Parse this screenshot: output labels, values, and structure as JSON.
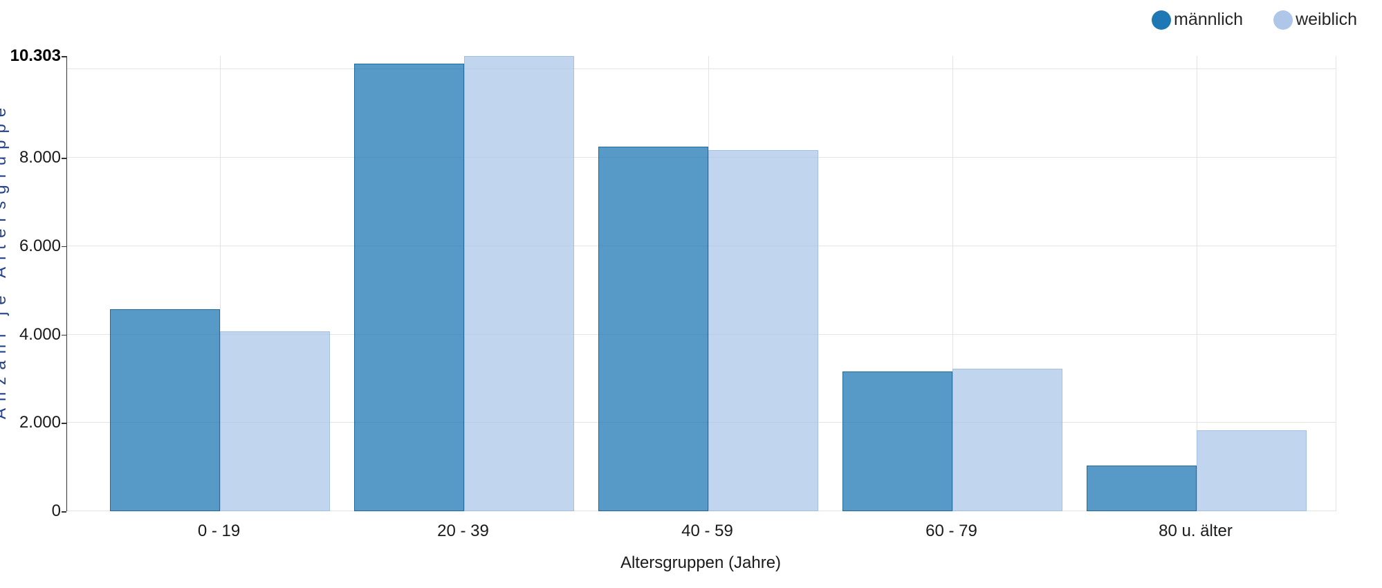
{
  "legend": {
    "items": [
      {
        "label": "männlich",
        "color": "#1f77b4"
      },
      {
        "label": "weiblich",
        "color": "#aec7e8"
      }
    ]
  },
  "axes": {
    "x_title": "Altersgruppen (Jahre)",
    "y_title": "Anzahl je Altersgruppe"
  },
  "chart_data": {
    "type": "bar",
    "title": "",
    "categories": [
      "0 - 19",
      "20 - 39",
      "40 - 59",
      "60 - 79",
      "80 u. älter"
    ],
    "series": [
      {
        "name": "männlich",
        "color": "#1f77b4",
        "values": [
          4570,
          10130,
          8250,
          3160,
          1030
        ]
      },
      {
        "name": "weiblich",
        "color": "#aec7e8",
        "values": [
          4070,
          10303,
          8170,
          3220,
          1840
        ]
      }
    ],
    "xlabel": "Altersgruppen (Jahre)",
    "ylabel": "Anzahl je Altersgruppe",
    "ylim": [
      0,
      10303
    ],
    "y_axis": {
      "max": 10303,
      "ticks": [
        {
          "value": 0,
          "label": "0",
          "grid": true,
          "bold": false
        },
        {
          "value": 2000,
          "label": "2.000",
          "grid": true,
          "bold": false
        },
        {
          "value": 4000,
          "label": "4.000",
          "grid": true,
          "bold": false
        },
        {
          "value": 6000,
          "label": "6.000",
          "grid": true,
          "bold": false
        },
        {
          "value": 8000,
          "label": "8.000",
          "grid": true,
          "bold": false
        },
        {
          "value": 10000,
          "label": "",
          "grid": true,
          "bold": false
        },
        {
          "value": 10303,
          "label": "10.303",
          "grid": false,
          "bold": true
        }
      ]
    },
    "grid": "horizontal gridlines + vertical gridline at each category center",
    "legend_position": "top-right",
    "bar_opacity": 0.75
  }
}
